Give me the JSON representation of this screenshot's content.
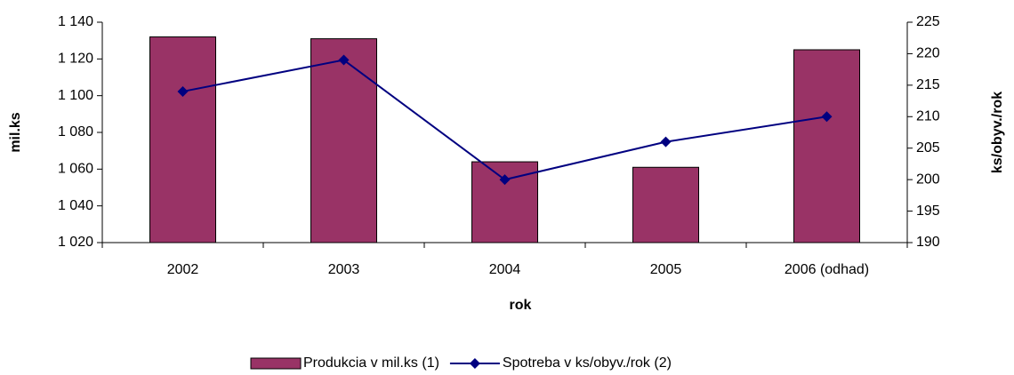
{
  "chart_data": {
    "type": "bar-line",
    "x_label": "rok",
    "y_label": "mil.ks",
    "y2_label": "ks/obyv./rok",
    "categories": [
      "2002",
      "2003",
      "2004",
      "2005",
      "2006 (odhad)"
    ],
    "series": [
      {
        "name": "Produkcia v mil.ks (1)",
        "color": "#993366",
        "type": "bar",
        "values": [
          1132,
          1131,
          1064,
          1061,
          1125
        ]
      },
      {
        "name": "Spotreba v ks/obyv./rok (2)",
        "color": "#000080",
        "type": "line",
        "axis": "y2",
        "values": [
          214,
          219,
          200,
          206,
          210
        ]
      }
    ],
    "ylim": [
      1020,
      1140
    ],
    "yticks": [
      {
        "value": 1020,
        "label": "1 020"
      },
      {
        "value": 1040,
        "label": "1 040"
      },
      {
        "value": 1060,
        "label": "1 060"
      },
      {
        "value": 1080,
        "label": "1 080"
      },
      {
        "value": 1100,
        "label": "1 100"
      },
      {
        "value": 1120,
        "label": "1 120"
      },
      {
        "value": 1140,
        "label": "1 140"
      }
    ],
    "y2lim": [
      190,
      225
    ],
    "y2ticks": [
      190,
      195,
      200,
      205,
      210,
      215,
      220,
      225
    ],
    "legend": "bottom"
  }
}
